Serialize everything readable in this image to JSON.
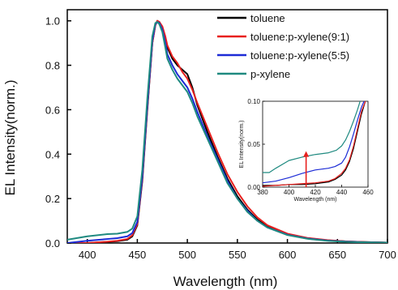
{
  "chart_data": [
    {
      "type": "line",
      "title": "",
      "xlabel": "Wavelength (nm)",
      "ylabel": "EL Intensity(norm.)",
      "xlim": [
        380,
        700
      ],
      "ylim": [
        0.0,
        1.05
      ],
      "xticks": [
        "400",
        "450",
        "500",
        "550",
        "600",
        "650",
        "700"
      ],
      "yticks": [
        "0.0",
        "0.2",
        "0.4",
        "0.6",
        "0.8",
        "1.0"
      ],
      "grid": false,
      "legend": "top-right",
      "series": [
        {
          "name": "toluene",
          "color": "#000000",
          "x": [
            380,
            400,
            420,
            430,
            440,
            445,
            450,
            455,
            460,
            465,
            468,
            470,
            472,
            475,
            478,
            480,
            485,
            490,
            495,
            500,
            505,
            510,
            520,
            530,
            540,
            550,
            560,
            570,
            580,
            600,
            620,
            640,
            660,
            680,
            700
          ],
          "y": [
            0.0,
            0.0,
            0.005,
            0.008,
            0.015,
            0.03,
            0.08,
            0.28,
            0.6,
            0.9,
            0.98,
            1.0,
            0.995,
            0.97,
            0.92,
            0.88,
            0.83,
            0.8,
            0.78,
            0.76,
            0.7,
            0.62,
            0.5,
            0.39,
            0.29,
            0.21,
            0.15,
            0.105,
            0.075,
            0.04,
            0.022,
            0.012,
            0.007,
            0.004,
            0.002
          ]
        },
        {
          "name": "toluene:p-xylene(9:1)",
          "color": "#e8201e",
          "x": [
            380,
            400,
            420,
            430,
            440,
            445,
            450,
            455,
            460,
            465,
            468,
            470,
            472,
            475,
            478,
            480,
            485,
            490,
            495,
            500,
            505,
            510,
            520,
            530,
            540,
            550,
            560,
            570,
            580,
            600,
            620,
            640,
            660,
            680,
            700
          ],
          "y": [
            0.0,
            0.0,
            0.006,
            0.01,
            0.018,
            0.035,
            0.085,
            0.29,
            0.61,
            0.9,
            0.98,
            1.0,
            0.995,
            0.975,
            0.93,
            0.89,
            0.84,
            0.81,
            0.77,
            0.74,
            0.69,
            0.63,
            0.52,
            0.41,
            0.31,
            0.23,
            0.165,
            0.115,
            0.08,
            0.042,
            0.023,
            0.013,
            0.007,
            0.004,
            0.002
          ]
        },
        {
          "name": "toluene:p-xylene(5:5)",
          "color": "#1c2bd6",
          "x": [
            380,
            400,
            420,
            430,
            440,
            445,
            450,
            455,
            460,
            465,
            468,
            470,
            472,
            475,
            478,
            480,
            485,
            490,
            495,
            500,
            505,
            510,
            520,
            530,
            540,
            550,
            560,
            570,
            580,
            600,
            620,
            640,
            660,
            680,
            700
          ],
          "y": [
            0.0,
            0.01,
            0.018,
            0.022,
            0.03,
            0.045,
            0.095,
            0.3,
            0.62,
            0.91,
            0.985,
            0.995,
            0.99,
            0.96,
            0.9,
            0.85,
            0.8,
            0.76,
            0.73,
            0.7,
            0.65,
            0.59,
            0.48,
            0.38,
            0.28,
            0.2,
            0.145,
            0.1,
            0.07,
            0.037,
            0.02,
            0.011,
            0.006,
            0.003,
            0.002
          ]
        },
        {
          "name": "p-xylene",
          "color": "#1f8a80",
          "x": [
            380,
            400,
            420,
            430,
            440,
            445,
            450,
            455,
            460,
            465,
            468,
            470,
            472,
            475,
            478,
            480,
            485,
            490,
            495,
            500,
            505,
            510,
            520,
            530,
            540,
            550,
            560,
            570,
            580,
            600,
            620,
            640,
            660,
            680,
            700
          ],
          "y": [
            0.015,
            0.03,
            0.04,
            0.042,
            0.05,
            0.065,
            0.12,
            0.33,
            0.65,
            0.93,
            0.99,
            0.995,
            0.985,
            0.95,
            0.88,
            0.83,
            0.78,
            0.74,
            0.71,
            0.68,
            0.63,
            0.57,
            0.47,
            0.37,
            0.27,
            0.2,
            0.14,
            0.1,
            0.07,
            0.036,
            0.019,
            0.01,
            0.005,
            0.003,
            0.002
          ]
        }
      ]
    },
    {
      "type": "line",
      "title": "",
      "xlabel": "Wavelength (nm)",
      "ylabel": "EL Intensity(norm.)",
      "xlim": [
        380,
        460
      ],
      "ylim": [
        0.0,
        0.1
      ],
      "xticks": [
        "380",
        "400",
        "420",
        "440",
        "460"
      ],
      "yticks": [
        "0.00",
        "0.05",
        "0.10"
      ],
      "grid": false,
      "arrow": {
        "color": "#e8201e",
        "x": 413,
        "y_from": 0.0,
        "y_to": 0.04
      },
      "series": [
        {
          "name": "toluene",
          "color": "#000000",
          "x": [
            380,
            390,
            400,
            410,
            420,
            430,
            435,
            440,
            443,
            446,
            449,
            452,
            455,
            458
          ],
          "y": [
            0.002,
            0.002,
            0.003,
            0.003,
            0.004,
            0.006,
            0.009,
            0.014,
            0.02,
            0.03,
            0.045,
            0.065,
            0.085,
            0.1
          ]
        },
        {
          "name": "toluene:p-xylene(9:1)",
          "color": "#e8201e",
          "x": [
            380,
            390,
            400,
            410,
            420,
            430,
            435,
            440,
            443,
            446,
            449,
            452,
            455,
            458
          ],
          "y": [
            0.001,
            0.002,
            0.003,
            0.004,
            0.005,
            0.007,
            0.01,
            0.016,
            0.022,
            0.032,
            0.048,
            0.068,
            0.088,
            0.1
          ]
        },
        {
          "name": "toluene:p-xylene(5:5)",
          "color": "#1c2bd6",
          "x": [
            380,
            390,
            400,
            410,
            420,
            430,
            435,
            440,
            443,
            446,
            449,
            452,
            455,
            457
          ],
          "y": [
            0.005,
            0.007,
            0.011,
            0.016,
            0.02,
            0.022,
            0.024,
            0.028,
            0.035,
            0.047,
            0.062,
            0.078,
            0.093,
            0.1
          ]
        },
        {
          "name": "p-xylene",
          "color": "#1f8a80",
          "x": [
            380,
            385,
            390,
            400,
            410,
            420,
            430,
            436,
            440,
            443,
            446,
            449,
            452,
            454
          ],
          "y": [
            0.017,
            0.017,
            0.022,
            0.031,
            0.035,
            0.038,
            0.04,
            0.043,
            0.048,
            0.055,
            0.065,
            0.077,
            0.09,
            0.1
          ]
        }
      ]
    }
  ]
}
